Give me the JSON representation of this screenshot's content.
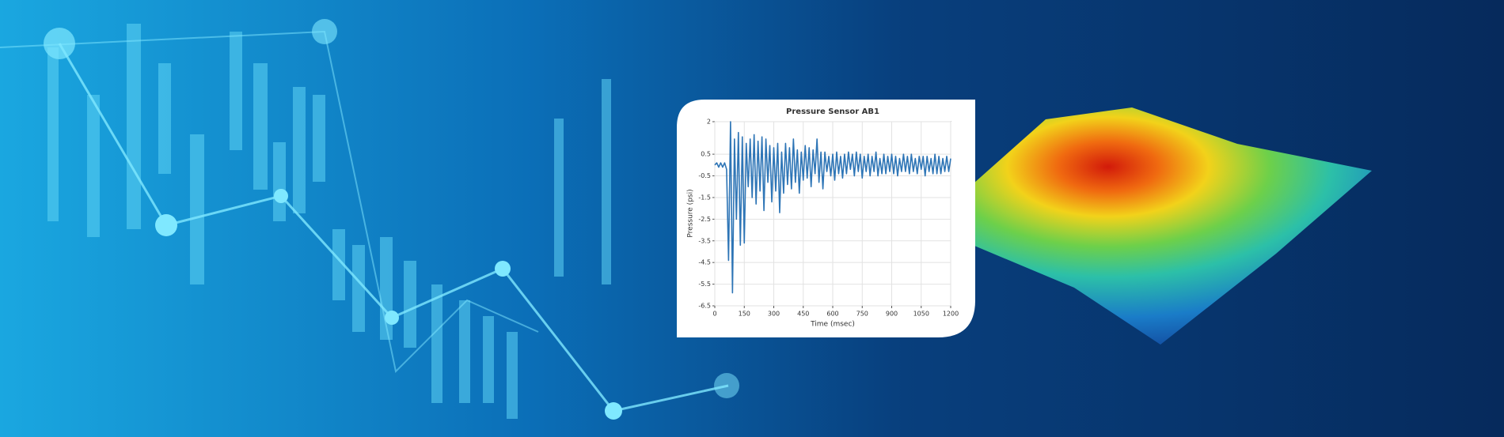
{
  "chart_data": {
    "type": "line",
    "title": "Pressure Sensor AB1",
    "x_label": "Time (msec)",
    "y_label": "Pressure (psi)",
    "color": "#2e75b6",
    "grid": true,
    "xlim": [
      0,
      1200
    ],
    "xticks": [
      0,
      150,
      300,
      450,
      600,
      750,
      900,
      1050,
      1200
    ],
    "ylim": [
      -6.5,
      2
    ],
    "yticks": [
      2,
      0.5,
      -0.5,
      -1.5,
      -2.5,
      -3.5,
      -4.5,
      -5.5,
      -6.5
    ],
    "x": [
      0,
      10,
      20,
      30,
      40,
      50,
      60,
      70,
      80,
      90,
      100,
      110,
      120,
      130,
      140,
      150,
      160,
      170,
      180,
      190,
      200,
      210,
      220,
      230,
      240,
      250,
      260,
      270,
      280,
      290,
      300,
      310,
      320,
      330,
      340,
      350,
      360,
      370,
      380,
      390,
      400,
      410,
      420,
      430,
      440,
      450,
      460,
      470,
      480,
      490,
      500,
      510,
      520,
      530,
      540,
      550,
      560,
      570,
      580,
      590,
      600,
      610,
      620,
      630,
      640,
      650,
      660,
      670,
      680,
      690,
      700,
      710,
      720,
      730,
      740,
      750,
      760,
      770,
      780,
      790,
      800,
      810,
      820,
      830,
      840,
      850,
      860,
      870,
      880,
      890,
      900,
      910,
      920,
      930,
      940,
      950,
      960,
      970,
      980,
      990,
      1000,
      1010,
      1020,
      1030,
      1040,
      1050,
      1060,
      1070,
      1080,
      1090,
      1100,
      1110,
      1120,
      1130,
      1140,
      1150,
      1160,
      1170,
      1180,
      1190,
      1200
    ],
    "values": [
      0,
      0.1,
      -0.1,
      0.1,
      -0.1,
      0.1,
      -0.2,
      -4.4,
      2.0,
      -5.9,
      1.2,
      -2.5,
      1.5,
      -3.7,
      1.3,
      -3.6,
      1.0,
      -1.0,
      1.2,
      -1.5,
      1.4,
      -1.8,
      1.1,
      -1.2,
      1.3,
      -2.1,
      1.2,
      -0.8,
      0.9,
      -1.7,
      0.8,
      -1.2,
      1.0,
      -2.2,
      0.6,
      -1.3,
      1.0,
      -0.9,
      0.8,
      -1.1,
      1.2,
      -0.8,
      0.7,
      -1.3,
      0.6,
      -0.7,
      0.9,
      -0.6,
      0.8,
      -1.0,
      0.7,
      -0.4,
      1.2,
      -0.8,
      0.6,
      -1.1,
      0.6,
      -0.3,
      0.4,
      -0.5,
      0.5,
      -0.7,
      0.6,
      -0.4,
      0.4,
      -0.6,
      0.5,
      -0.4,
      0.6,
      -0.2,
      0.5,
      -0.5,
      0.6,
      -0.3,
      0.5,
      -0.6,
      0.4,
      -0.3,
      0.5,
      -0.5,
      0.4,
      -0.3,
      0.6,
      -0.5,
      0.3,
      -0.4,
      0.5,
      -0.4,
      0.4,
      -0.3,
      0.5,
      -0.4,
      0.4,
      -0.5,
      0.3,
      -0.3,
      0.5,
      -0.3,
      0.4,
      -0.4,
      0.5,
      -0.3,
      0.3,
      -0.4,
      0.4,
      -0.2,
      0.4,
      -0.5,
      0.4,
      -0.3,
      0.3,
      -0.4,
      0.5,
      -0.4,
      0.4,
      -0.4,
      0.3,
      -0.3,
      0.4,
      -0.3,
      0.3
    ]
  }
}
